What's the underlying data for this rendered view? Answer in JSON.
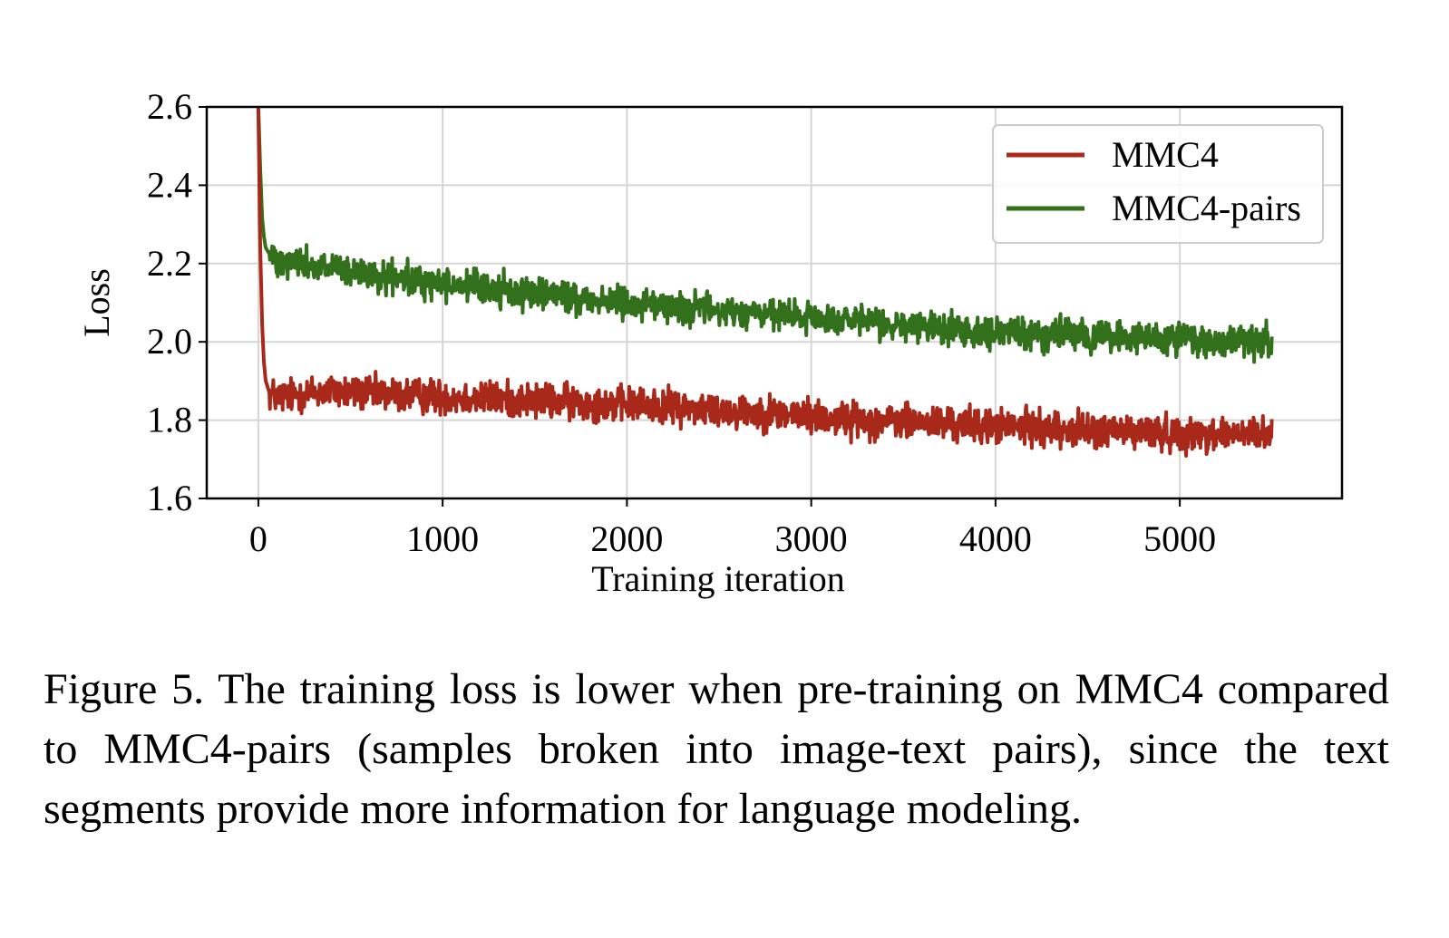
{
  "chart_data": {
    "type": "line",
    "xlabel": "Training iteration",
    "ylabel": "Loss",
    "xlim": [
      -280,
      5880
    ],
    "ylim": [
      1.6,
      2.6
    ],
    "xticks": [
      0,
      1000,
      2000,
      3000,
      4000,
      5000
    ],
    "xtick_labels": [
      "0",
      "1000",
      "2000",
      "3000",
      "4000",
      "5000"
    ],
    "yticks": [
      1.6,
      1.8,
      2.0,
      2.2,
      2.4,
      2.6
    ],
    "ytick_labels": [
      "1.6",
      "1.8",
      "2.0",
      "2.2",
      "2.4",
      "2.6"
    ],
    "grid": true,
    "legend_position": "top-right",
    "series": [
      {
        "name": "MMC4",
        "color": "#a8281a",
        "x": [
          0,
          10,
          20,
          30,
          40,
          60,
          100,
          200,
          300,
          400,
          500,
          750,
          1000,
          1250,
          1500,
          1750,
          2000,
          2250,
          2500,
          2750,
          3000,
          3250,
          3500,
          3750,
          4000,
          4250,
          4500,
          4750,
          5000,
          5250,
          5500
        ],
        "y": [
          2.6,
          2.25,
          2.05,
          1.95,
          1.9,
          1.87,
          1.86,
          1.865,
          1.87,
          1.875,
          1.87,
          1.865,
          1.86,
          1.855,
          1.85,
          1.845,
          1.84,
          1.835,
          1.825,
          1.82,
          1.81,
          1.8,
          1.795,
          1.79,
          1.785,
          1.78,
          1.775,
          1.77,
          1.765,
          1.765,
          1.76
        ],
        "noise": 0.022
      },
      {
        "name": "MMC4-pairs",
        "color": "#33701c",
        "x": [
          0,
          10,
          20,
          30,
          40,
          60,
          100,
          200,
          300,
          400,
          500,
          750,
          1000,
          1250,
          1500,
          1750,
          2000,
          2250,
          2500,
          2750,
          3000,
          3250,
          3500,
          3750,
          4000,
          4250,
          4500,
          4750,
          5000,
          5250,
          5500
        ],
        "y": [
          2.6,
          2.45,
          2.32,
          2.27,
          2.24,
          2.225,
          2.215,
          2.205,
          2.195,
          2.185,
          2.175,
          2.16,
          2.15,
          2.135,
          2.125,
          2.11,
          2.1,
          2.09,
          2.08,
          2.07,
          2.06,
          2.05,
          2.04,
          2.035,
          2.025,
          2.02,
          2.015,
          2.01,
          2.005,
          2.0,
          2.0
        ],
        "noise": 0.02
      }
    ]
  },
  "caption": {
    "text": "Figure 5. The training loss is lower when pre-training on MMC4 compared to MMC4-pairs (samples broken into image-text pairs), since the text segments provide more information for language modeling."
  }
}
